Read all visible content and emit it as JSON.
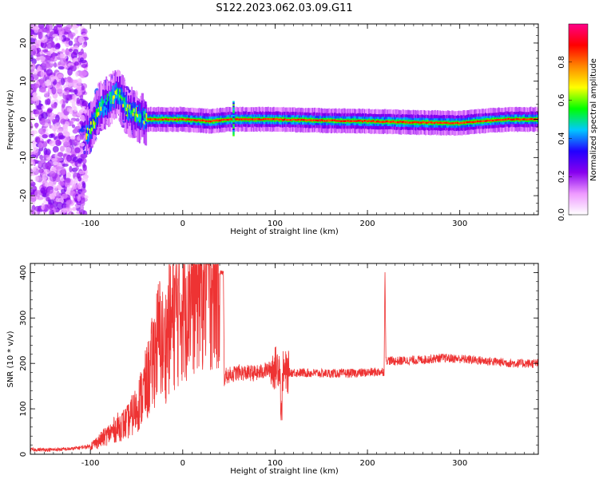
{
  "title": "S122.2023.062.03.09.G11",
  "chart_data": [
    {
      "type": "heatmap",
      "xlabel": "Height of straight line (km)",
      "ylabel": "Frequency (Hz)",
      "xlim": [
        -165,
        385
      ],
      "ylim": [
        -25,
        25
      ],
      "xticks": [
        -100,
        0,
        100,
        200,
        300
      ],
      "yticks": [
        -20,
        -10,
        0,
        10,
        20
      ],
      "colorbar": {
        "label": "Normalized spectral amplitude",
        "range": [
          0,
          1
        ],
        "ticks": [
          0.0,
          0.2,
          0.4,
          0.6,
          0.8
        ],
        "colormap": [
          "#ffffff",
          "#ee99ff",
          "#8800ee",
          "#2200ff",
          "#00c8ff",
          "#00ff00",
          "#ffff00",
          "#ff8800",
          "#ff0000",
          "#ff0088"
        ]
      },
      "ridge": {
        "x": [
          -110,
          -100,
          -90,
          -80,
          -70,
          -60,
          -50,
          -40,
          -30,
          -20,
          0,
          30,
          50,
          55,
          100,
          150,
          200,
          250,
          300,
          320,
          350,
          385
        ],
        "freq": [
          -5,
          -2,
          3,
          5,
          7,
          2,
          1,
          0,
          0,
          0,
          0,
          -0.5,
          0,
          0,
          0,
          -0.3,
          -0.5,
          -0.8,
          -1,
          -0.5,
          0,
          0
        ]
      }
    },
    {
      "type": "line",
      "xlabel": "Height of straight line (km)",
      "ylabel": "SNR (10 * v/v)",
      "xlim": [
        -165,
        385
      ],
      "ylim": [
        0,
        420
      ],
      "xticks": [
        -100,
        0,
        100,
        200,
        300
      ],
      "yticks": [
        0,
        100,
        200,
        300,
        400
      ],
      "color": "#ee3333",
      "x": [
        -165,
        -140,
        -120,
        -100,
        -90,
        -80,
        -70,
        -60,
        -50,
        -40,
        -35,
        -30,
        -25,
        -20,
        -15,
        -10,
        0,
        10,
        20,
        30,
        40,
        44,
        45,
        46,
        60,
        80,
        90,
        100,
        105,
        107,
        108,
        110,
        120,
        150,
        180,
        200,
        218,
        219,
        220,
        221,
        230,
        260,
        280,
        300,
        330,
        360,
        385
      ],
      "y": [
        10,
        10,
        12,
        18,
        30,
        45,
        60,
        70,
        100,
        150,
        180,
        230,
        260,
        230,
        280,
        300,
        340,
        370,
        390,
        395,
        400,
        400,
        165,
        172,
        180,
        178,
        185,
        190,
        200,
        60,
        180,
        180,
        180,
        178,
        178,
        180,
        182,
        410,
        205,
        207,
        205,
        208,
        212,
        210,
        205,
        200,
        200
      ]
    }
  ]
}
